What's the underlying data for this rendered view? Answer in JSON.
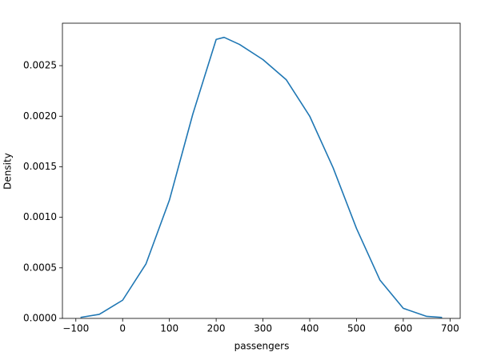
{
  "chart_data": {
    "type": "line",
    "xlabel": "passengers",
    "ylabel": "Density",
    "x": [
      -90,
      -50,
      0,
      50,
      100,
      150,
      200,
      217,
      250,
      300,
      350,
      400,
      450,
      500,
      550,
      600,
      650,
      683
    ],
    "series": [
      {
        "name": "passengers",
        "color": "#1f77b4",
        "values": [
          1e-05,
          4e-05,
          0.00018,
          0.00054,
          0.00117,
          0.00202,
          0.00276,
          0.00278,
          0.00271,
          0.00256,
          0.00236,
          0.002,
          0.00149,
          0.00089,
          0.00038,
          0.0001,
          2e-05,
          1e-05
        ]
      }
    ],
    "xlim": [
      -128.7,
      721.7
    ],
    "xticks": [
      {
        "value": -100,
        "label": "−100"
      },
      0,
      100,
      200,
      300,
      400,
      500,
      600,
      700
    ],
    "ylim": [
      0,
      0.00292
    ],
    "yticks": [
      {
        "value": 0,
        "label": "0.0000"
      },
      {
        "value": 0.0005,
        "label": "0.0005"
      },
      {
        "value": 0.001,
        "label": "0.0010"
      },
      {
        "value": 0.0015,
        "label": "0.0015"
      },
      {
        "value": 0.002,
        "label": "0.0020"
      },
      {
        "value": 0.0025,
        "label": "0.0025"
      }
    ],
    "grid": false
  }
}
